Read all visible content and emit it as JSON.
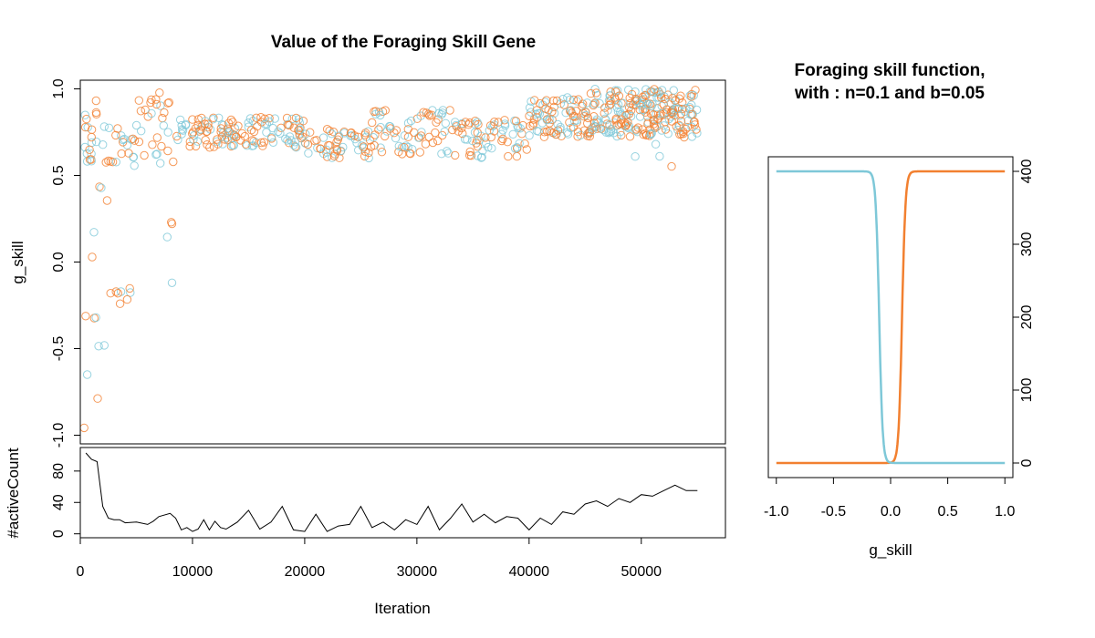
{
  "colors": {
    "series_a": "#f28030",
    "series_b": "#7ec8d8",
    "line": "#000000"
  },
  "chart_data": [
    {
      "id": "gene-scatter",
      "type": "scatter",
      "title": "Value of the Foraging Skill Gene",
      "xlabel": "Iteration",
      "ylabel": "g_skill",
      "xlim": [
        0,
        57500
      ],
      "ylim": [
        -1.05,
        1.05
      ],
      "xticks": [
        0,
        10000,
        20000,
        30000,
        40000,
        50000
      ],
      "yticks": [
        -1.0,
        -0.5,
        0.0,
        0.5,
        1.0
      ],
      "ytick_labels": [
        "-1.0",
        "-0.5",
        "0.0",
        "0.5",
        "1.0"
      ],
      "marker": "open-circle",
      "series_colors": [
        "#f28030",
        "#7ec8d8"
      ],
      "segments": [
        [
          300,
          1500,
          -0.98,
          0.99,
          1.0
        ],
        [
          300,
          1500,
          0.55,
          0.98,
          1.2
        ],
        [
          1500,
          2500,
          0.25,
          0.85,
          0.6
        ],
        [
          1500,
          2500,
          -0.8,
          -0.1,
          0.3
        ],
        [
          2500,
          5000,
          -0.25,
          -0.15,
          0.3
        ],
        [
          2500,
          5000,
          0.55,
          0.8,
          0.8
        ],
        [
          5000,
          7500,
          0.6,
          0.98,
          0.8
        ],
        [
          7000,
          9000,
          0.55,
          1.0,
          0.6
        ],
        [
          7500,
          8800,
          0.13,
          0.3,
          0.2
        ],
        [
          7000,
          8500,
          -0.22,
          -0.08,
          0.05
        ],
        [
          9000,
          20000,
          0.66,
          0.84,
          1.2
        ],
        [
          20000,
          26000,
          0.6,
          0.78,
          1.0
        ],
        [
          26000,
          33000,
          0.62,
          0.88,
          1.0
        ],
        [
          33000,
          40000,
          0.6,
          0.82,
          1.0
        ],
        [
          40000,
          45000,
          0.72,
          0.95,
          1.6
        ],
        [
          45000,
          55000,
          0.72,
          1.0,
          2.4
        ],
        [
          49000,
          53000,
          0.55,
          0.7,
          0.1
        ]
      ]
    },
    {
      "id": "active-count",
      "type": "line",
      "ylabel": "#activeCount",
      "xlim": [
        0,
        57500
      ],
      "ylim": [
        -5,
        110
      ],
      "yticks": [
        0,
        40,
        80
      ],
      "ytick_labels": [
        "0",
        "40",
        "80"
      ],
      "x": [
        500,
        1000,
        1500,
        2000,
        2500,
        3000,
        3500,
        4000,
        5000,
        6000,
        6500,
        7000,
        8000,
        8500,
        9000,
        9500,
        10000,
        10500,
        11000,
        11500,
        12000,
        12500,
        13000,
        14000,
        15000,
        16000,
        17000,
        18000,
        19000,
        20000,
        21000,
        22000,
        23000,
        24000,
        25000,
        26000,
        27000,
        28000,
        29000,
        30000,
        31000,
        32000,
        33000,
        34000,
        35000,
        36000,
        37000,
        38000,
        39000,
        40000,
        41000,
        42000,
        43000,
        44000,
        45000,
        46000,
        47000,
        48000,
        49000,
        50000,
        51000,
        52000,
        53000,
        54000,
        55000
      ],
      "values": [
        103,
        95,
        92,
        35,
        20,
        18,
        18,
        14,
        15,
        12,
        16,
        22,
        26,
        20,
        5,
        8,
        3,
        6,
        18,
        5,
        16,
        8,
        6,
        15,
        30,
        6,
        15,
        35,
        5,
        3,
        25,
        3,
        10,
        12,
        35,
        8,
        15,
        5,
        18,
        12,
        35,
        5,
        20,
        38,
        15,
        25,
        14,
        22,
        20,
        5,
        20,
        12,
        28,
        25,
        38,
        42,
        35,
        45,
        40,
        50,
        48,
        55,
        62,
        55,
        55
      ]
    },
    {
      "id": "skill-function",
      "type": "line",
      "title": "Foraging skill function,\n with : n=0.1 and b=0.05",
      "xlabel": "g_skill",
      "xlim": [
        -1.07,
        1.07
      ],
      "ylim": [
        -20,
        420
      ],
      "xticks": [
        -1.0,
        -0.5,
        0.0,
        0.5,
        1.0
      ],
      "xtick_labels": [
        "-1.0",
        "-0.5",
        "0.0",
        "0.5",
        "1.0"
      ],
      "yticks": [
        0,
        100,
        200,
        300,
        400
      ],
      "ytick_labels": [
        "0",
        "100",
        "200",
        "300",
        "400"
      ],
      "series": [
        {
          "color": "#f28030",
          "shape": "rising",
          "center": 0.1,
          "width": 0.015,
          "max": 400
        },
        {
          "color": "#7ec8d8",
          "shape": "falling",
          "center": -0.1,
          "width": 0.015,
          "max": 400
        }
      ]
    }
  ]
}
